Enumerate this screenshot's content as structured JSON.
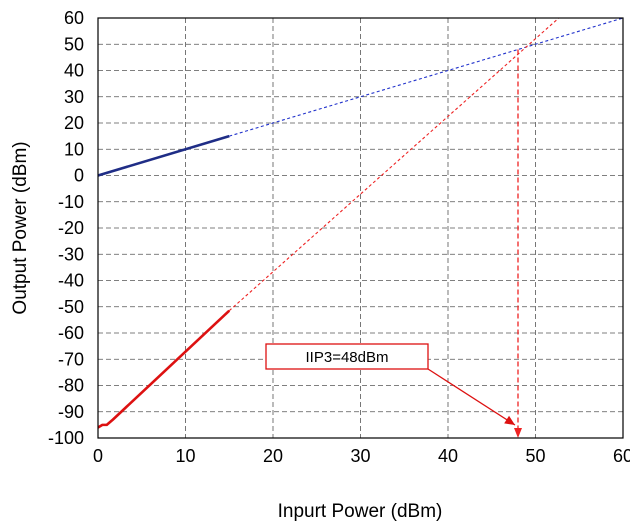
{
  "chart_data": {
    "type": "line",
    "xlabel": "Inpurt Power (dBm)",
    "ylabel": "Output Power (dBm)",
    "xlim": [
      0,
      60
    ],
    "ylim": [
      -100,
      60
    ],
    "x_ticks": [
      0,
      10,
      20,
      30,
      40,
      50,
      60
    ],
    "y_ticks": [
      60,
      50,
      40,
      30,
      20,
      10,
      0,
      -10,
      -20,
      -30,
      -40,
      -50,
      -60,
      -70,
      -80,
      -90,
      -100
    ],
    "grid": true,
    "series": [
      {
        "style": "solid",
        "color": "#1f2d86",
        "x": [
          0,
          15
        ],
        "y": [
          0,
          15
        ]
      },
      {
        "style": "dotted",
        "color": "#2233cc",
        "x": [
          15,
          61
        ],
        "y": [
          15,
          61
        ]
      },
      {
        "style": "solid",
        "color": "#dd1111",
        "x": [
          0,
          0.5,
          1,
          1.7,
          15
        ],
        "y": [
          -96,
          -95,
          -95,
          -93,
          -51.5
        ]
      },
      {
        "style": "dotted",
        "color": "#ee2222",
        "x": [
          15,
          53
        ],
        "y": [
          -51.5,
          61
        ]
      }
    ],
    "iip3_marker": {
      "x": 48,
      "y": 48,
      "drop_to": -100
    },
    "annotation": {
      "text": "IIP3=48dBm",
      "color": "#dd1111"
    }
  }
}
